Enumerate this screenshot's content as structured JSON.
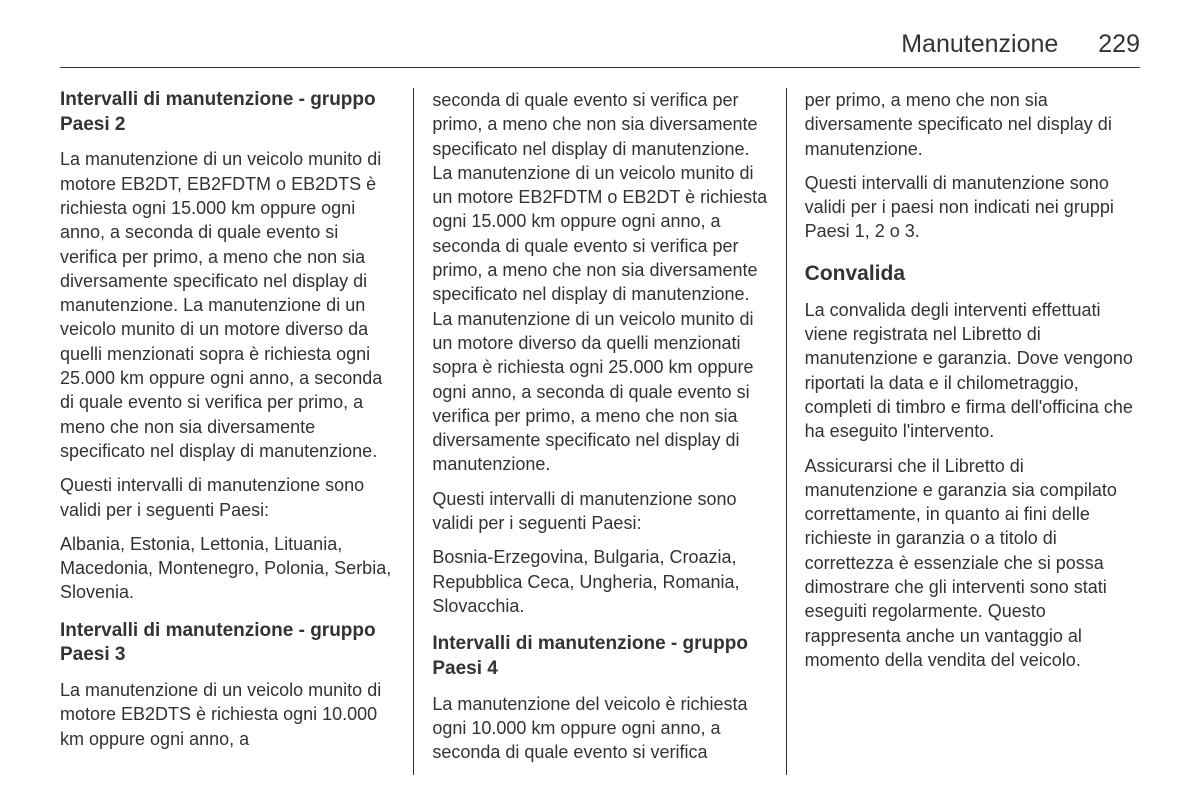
{
  "header": {
    "title": "Manutenzione",
    "page_number": "229"
  },
  "col1": {
    "heading1": "Intervalli di manutenzione - gruppo Paesi 2",
    "p1": "La manutenzione di un veicolo munito di motore EB2DT, EB2FDTM o EB2DTS è richiesta ogni 15.000 km oppure ogni anno, a seconda di quale evento si verifica per primo, a meno che non sia diversamente specificato nel display di manutenzione. La manutenzione di un veicolo munito di un motore diverso da quelli menzionati sopra è richiesta ogni 25.000 km oppure ogni anno, a seconda di quale evento si verifica per primo, a meno che non sia diversamente specificato nel display di manutenzione.",
    "p2": "Questi intervalli di manutenzione sono validi per i seguenti Paesi:",
    "p3": "Albania, Estonia, Lettonia, Lituania, Macedonia, Montenegro, Polonia, Serbia, Slovenia.",
    "heading2": "Intervalli di manutenzione - gruppo Paesi 3",
    "p4": "La manutenzione di un veicolo munito di motore EB2DTS è richiesta ogni 10.000 km oppure ogni anno, a"
  },
  "col2": {
    "p1": "seconda di quale evento si verifica per primo, a meno che non sia diversamente specificato nel display di manutenzione. La manutenzione di un veicolo munito di un motore EB2FDTM o EB2DT è richiesta ogni 15.000 km oppure ogni anno, a seconda di quale evento si verifica per primo, a meno che non sia diversamente specificato nel display di manutenzione. La manutenzione di un veicolo munito di un motore diverso da quelli menzionati sopra è richiesta ogni 25.000 km oppure ogni anno, a seconda di quale evento si verifica per primo, a meno che non sia diversamente specificato nel display di manutenzione.",
    "p2": "Questi intervalli di manutenzione sono validi per i seguenti Paesi:",
    "p3": "Bosnia-Erzegovina, Bulgaria, Croazia, Repubblica Ceca, Ungheria, Romania, Slovacchia.",
    "heading1": "Intervalli di manutenzione - gruppo Paesi 4",
    "p4": "La manutenzione del veicolo è richiesta ogni 10.000 km oppure ogni anno, a seconda di quale evento si verifica"
  },
  "col3": {
    "p1": "per primo, a meno che non sia diversamente specificato nel display di manutenzione.",
    "p2": "Questi intervalli di manutenzione sono validi per i paesi non indicati nei gruppi Paesi 1, 2 o 3.",
    "heading1": "Convalida",
    "p3": "La convalida degli interventi effettuati viene registrata nel Libretto di manutenzione e garanzia. Dove vengono riportati la data e il chilometraggio, completi di timbro e firma dell'officina che ha eseguito l'intervento.",
    "p4": "Assicurarsi che il Libretto di manutenzione e garanzia sia compilato correttamente, in quanto ai fini delle richieste in garanzia o a titolo di correttezza è essenziale che si possa dimostrare che gli interventi sono stati eseguiti regolarmente. Questo rappresenta anche un vantaggio al momento della vendita del veicolo."
  }
}
